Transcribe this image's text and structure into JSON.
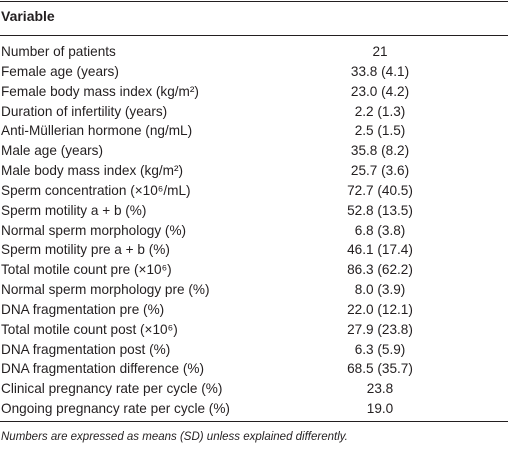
{
  "table": {
    "header": [
      "Variable"
    ],
    "rows": [
      [
        "Number of patients",
        "21"
      ],
      [
        "Female age (years)",
        "33.8 (4.1)"
      ],
      [
        "Female body mass index (kg/m²)",
        "23.0 (4.2)"
      ],
      [
        "Duration of infertility (years)",
        "2.2 (1.3)"
      ],
      [
        "Anti-Müllerian hormone (ng/mL)",
        "2.5 (1.5)"
      ],
      [
        "Male age (years)",
        "35.8 (8.2)"
      ],
      [
        "Male body mass index (kg/m²)",
        "25.7 (3.6)"
      ],
      [
        "Sperm concentration (×10⁶/mL)",
        "72.7 (40.5)"
      ],
      [
        "Sperm motility a + b (%)",
        "52.8 (13.5)"
      ],
      [
        "Normal sperm morphology (%)",
        "6.8 (3.8)"
      ],
      [
        "Sperm motility pre a + b (%)",
        "46.1 (17.4)"
      ],
      [
        "Total motile count pre (×10⁶)",
        "86.3 (62.2)"
      ],
      [
        "Normal sperm morphology pre (%)",
        "8.0 (3.9)"
      ],
      [
        "DNA fragmentation pre (%)",
        "22.0 (12.1)"
      ],
      [
        "Total motile count post (×10⁶)",
        "27.9 (23.8)"
      ],
      [
        "DNA fragmentation post (%)",
        "6.3 (5.9)"
      ],
      [
        "DNA fragmentation difference (%)",
        "68.5 (35.7)"
      ],
      [
        "Clinical pregnancy rate per cycle (%)",
        "23.8"
      ],
      [
        "Ongoing pregnancy rate per cycle (%)",
        "19.0"
      ]
    ],
    "footnote": "Numbers are expressed as means (SD) unless explained differently."
  }
}
